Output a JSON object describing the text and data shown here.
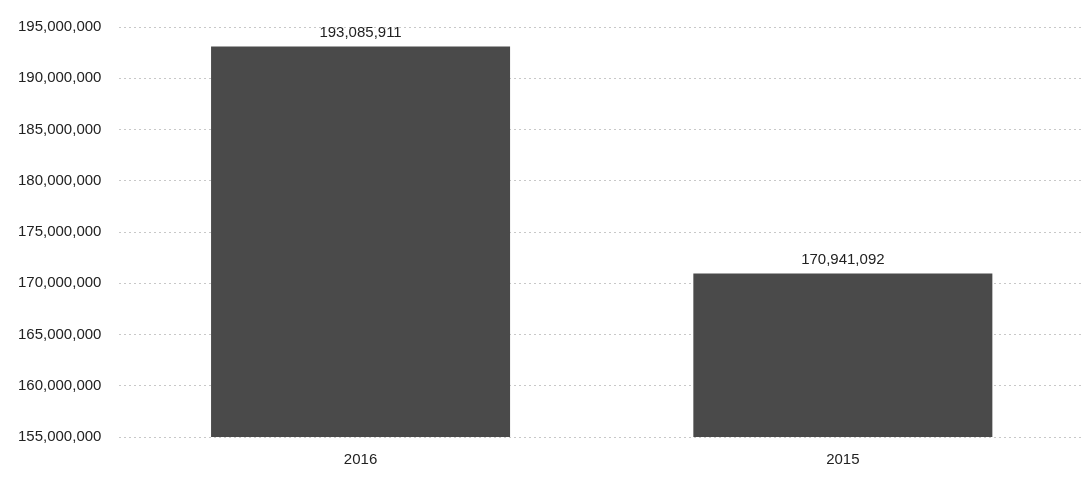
{
  "chart_data": {
    "type": "bar",
    "categories": [
      "2016",
      "2015"
    ],
    "values": [
      193085911,
      170941092
    ],
    "value_labels": [
      "193,085,911",
      "170,941,092"
    ],
    "color": "#4a4a4a",
    "ylim": [
      155000000,
      195000000
    ],
    "yticks": [
      {
        "value": 155000000,
        "label": "155,000,000"
      },
      {
        "value": 160000000,
        "label": "160,000,000"
      },
      {
        "value": 165000000,
        "label": "165,000,000"
      },
      {
        "value": 170000000,
        "label": "170,000,000"
      },
      {
        "value": 175000000,
        "label": "175,000,000"
      },
      {
        "value": 180000000,
        "label": "180,000,000"
      },
      {
        "value": 185000000,
        "label": "185,000,000"
      },
      {
        "value": 190000000,
        "label": "190,000,000"
      },
      {
        "value": 195000000,
        "label": "195,000,000"
      }
    ],
    "grid": "y",
    "legend": false
  }
}
